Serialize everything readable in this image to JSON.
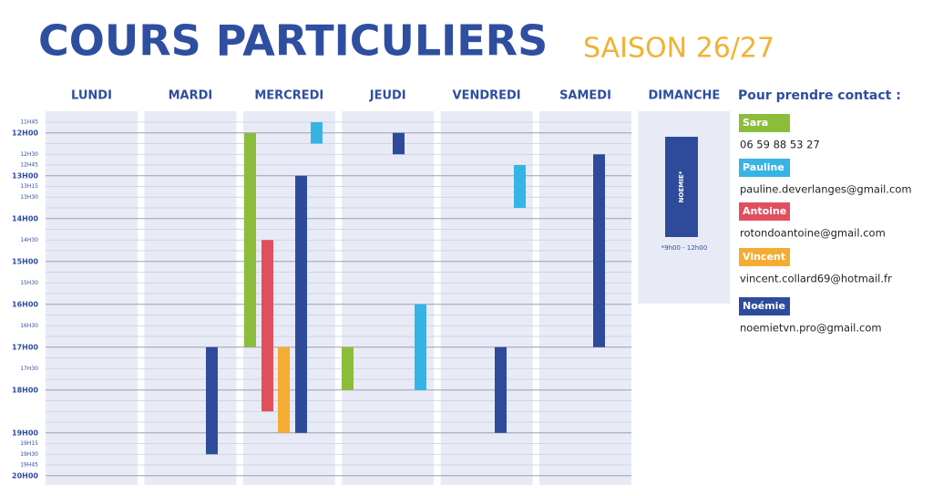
{
  "header": {
    "title": "COURS PARTICULIERS",
    "season": "SAISON 26/27"
  },
  "schedule": {
    "days": [
      "LUNDI",
      "MARDI",
      "MERCREDI",
      "JEUDI",
      "VENDREDI",
      "SAMEDI",
      "DIMANCHE"
    ],
    "time_labels": [
      {
        "value": 11.75,
        "label": "11H45"
      },
      {
        "value": 12,
        "label": "12H00"
      },
      {
        "value": 12.5,
        "label": "12H30"
      },
      {
        "value": 12.75,
        "label": "12H45"
      },
      {
        "value": 13,
        "label": "13H00"
      },
      {
        "value": 13.25,
        "label": "13H15"
      },
      {
        "value": 13.5,
        "label": "13H30"
      },
      {
        "value": 14,
        "label": "14H00"
      },
      {
        "value": 14.5,
        "label": "14H30"
      },
      {
        "value": 15,
        "label": "15H00"
      },
      {
        "value": 15.5,
        "label": "15H30"
      },
      {
        "value": 16,
        "label": "16H00"
      },
      {
        "value": 16.5,
        "label": "16H30"
      },
      {
        "value": 17,
        "label": "17H00"
      },
      {
        "value": 17.5,
        "label": "17H30"
      },
      {
        "value": 18,
        "label": "18H00"
      },
      {
        "value": 19,
        "label": "19H00"
      },
      {
        "value": 19.25,
        "label": "19H15"
      },
      {
        "value": 19.5,
        "label": "19H30"
      },
      {
        "value": 19.75,
        "label": "19H45"
      },
      {
        "value": 20,
        "label": "20H00"
      }
    ],
    "blocks": [
      {
        "day": "MARDI",
        "teacher": "Noémie",
        "start": 17,
        "end": 19.5
      },
      {
        "day": "MERCREDI",
        "teacher": "Sara",
        "start": 12,
        "end": 17
      },
      {
        "day": "MERCREDI",
        "teacher": "Antoine",
        "start": 14.5,
        "end": 18.5
      },
      {
        "day": "MERCREDI",
        "teacher": "Vincent",
        "start": 17,
        "end": 19
      },
      {
        "day": "MERCREDI",
        "teacher": "Noémie",
        "start": 13,
        "end": 19
      },
      {
        "day": "MERCREDI",
        "teacher": "Pauline",
        "start": 11.75,
        "end": 12.25
      },
      {
        "day": "JEUDI",
        "teacher": "Sara",
        "start": 17,
        "end": 18
      },
      {
        "day": "JEUDI",
        "teacher": "Noémie",
        "start": 12,
        "end": 12.5
      },
      {
        "day": "JEUDI",
        "teacher": "Pauline",
        "start": 16,
        "end": 18
      },
      {
        "day": "VENDREDI",
        "teacher": "Noémie",
        "start": 17,
        "end": 19
      },
      {
        "day": "VENDREDI",
        "teacher": "Pauline",
        "start": 12.75,
        "end": 13.75
      },
      {
        "day": "SAMEDI",
        "teacher": "Noémie",
        "start": 12.5,
        "end": 17
      }
    ],
    "sunday": {
      "label": "NOEMIE*",
      "note": "*9h00 - 12h00"
    }
  },
  "contacts": {
    "title": "Pour prendre contact :",
    "people": [
      {
        "name": "Sara",
        "color": "#8bbd3a",
        "detail": "06 59 88 53 27"
      },
      {
        "name": "Pauline",
        "color": "#36b4e5",
        "detail": "pauline.deverlanges@gmail.com"
      },
      {
        "name": "Antoine",
        "color": "#e0505c",
        "detail": "rotondoantoine@gmail.com"
      },
      {
        "name": "Vincent",
        "color": "#f5ac33",
        "detail": "vincent.collard69@hotmail.fr"
      },
      {
        "name": "Noémie",
        "color": "#2e4b9b",
        "detail": "noemietvn.pro@gmail.com"
      }
    ]
  }
}
